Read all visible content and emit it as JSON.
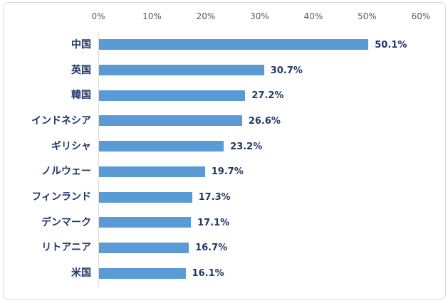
{
  "chart_data": {
    "type": "bar",
    "orientation": "horizontal",
    "title": "",
    "xlabel": "",
    "ylabel": "",
    "categories": [
      "中国",
      "英国",
      "韓国",
      "インドネシア",
      "ギリシャ",
      "ノルウェー",
      "フィンランド",
      "デンマーク",
      "リトアニア",
      "米国"
    ],
    "values": [
      50.1,
      30.7,
      27.2,
      26.6,
      23.2,
      19.7,
      17.3,
      17.1,
      16.7,
      16.1
    ],
    "data_labels": [
      "50.1%",
      "30.7%",
      "27.2%",
      "26.6%",
      "23.2%",
      "19.7%",
      "17.3%",
      "17.1%",
      "16.7%",
      "16.1%"
    ],
    "x_axis": {
      "position": "top",
      "min": 0,
      "max": 60,
      "step": 10,
      "tick_labels": [
        "0%",
        "10%",
        "20%",
        "30%",
        "40%",
        "50%",
        "60%"
      ]
    },
    "legend": "none",
    "grid": "off",
    "colors": {
      "bar": "#5B9BD5",
      "category_label": "#1F3864",
      "data_label": "#1F3864",
      "axis_label": "#595959",
      "axis_line": "#D9D9D9",
      "frame_border": "#D9D9D9",
      "background": "#FFFFFF"
    }
  }
}
